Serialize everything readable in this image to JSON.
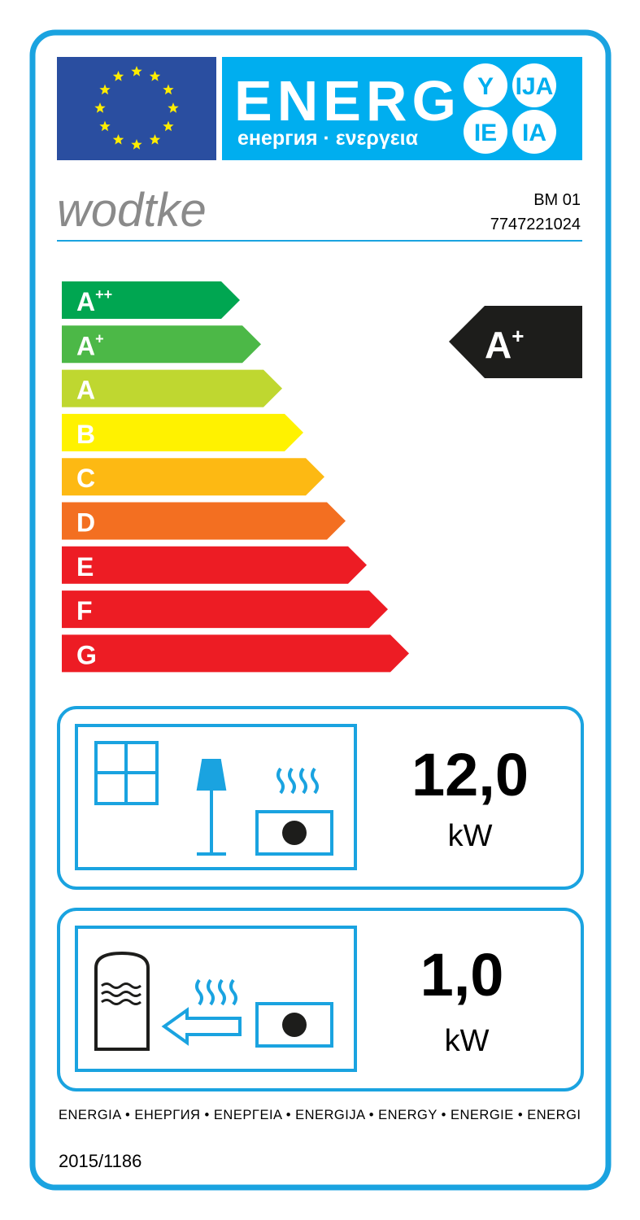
{
  "header": {
    "energy": "ENERG",
    "subtitle": "енергия · ενεργεια",
    "suffixes": [
      "Y",
      "IJA",
      "IE",
      "IA"
    ]
  },
  "supplier": "wodtke",
  "model": "BM 01",
  "code": "7747221024",
  "classes": [
    {
      "letter": "A",
      "sup": "++",
      "color": "#00a651"
    },
    {
      "letter": "A",
      "sup": "+",
      "color": "#4cb847"
    },
    {
      "letter": "A",
      "color": "#bfd730"
    },
    {
      "letter": "B",
      "color": "#fff200"
    },
    {
      "letter": "C",
      "color": "#fdb913"
    },
    {
      "letter": "D",
      "color": "#f36f21"
    },
    {
      "letter": "E",
      "color": "#ed1c24"
    },
    {
      "letter": "F",
      "color": "#ed1c24"
    },
    {
      "letter": "G",
      "color": "#ed1c24"
    }
  ],
  "rating": {
    "letter": "A",
    "sup": "+"
  },
  "space_heating": {
    "value": "12,0",
    "unit": "kW"
  },
  "water_heating": {
    "value": "1,0",
    "unit": "kW"
  },
  "footer": {
    "languages": "ENERGIA • ЕНЕРГИЯ • ΕΝΕΡΓΕΙΑ • ENERGIJA • ENERGY • ENERGIE • ENERGI",
    "regulation": "2015/1186"
  }
}
